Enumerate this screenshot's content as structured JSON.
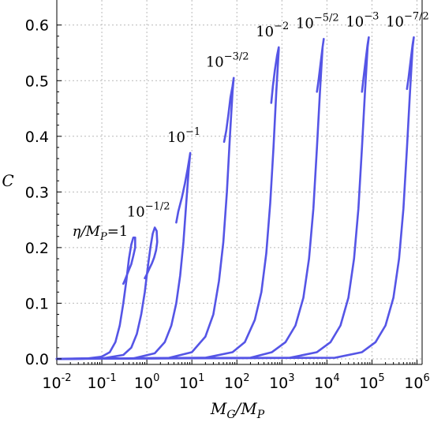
{
  "chart_data": {
    "type": "line",
    "title": "",
    "xlabel": "M_G/M_P",
    "ylabel": "C",
    "xscale": "log",
    "xlim": [
      0.01,
      1300000
    ],
    "ylim": [
      -0.01,
      0.645
    ],
    "grid": true,
    "line_color": "#5555e6",
    "x_ticks": [
      {
        "base": "10",
        "exp": "-2",
        "value": 0.01
      },
      {
        "base": "10",
        "exp": "-1",
        "value": 0.1
      },
      {
        "base": "10",
        "exp": "0",
        "value": 1
      },
      {
        "base": "10",
        "exp": "1",
        "value": 10
      },
      {
        "base": "10",
        "exp": "2",
        "value": 100
      },
      {
        "base": "10",
        "exp": "3",
        "value": 1000
      },
      {
        "base": "10",
        "exp": "4",
        "value": 10000
      },
      {
        "base": "10",
        "exp": "5",
        "value": 100000
      },
      {
        "base": "10",
        "exp": "6",
        "value": 1000000
      }
    ],
    "y_ticks": [
      "0.0",
      "0.1",
      "0.2",
      "0.3",
      "0.4",
      "0.5",
      "0.6"
    ],
    "y_tick_values": [
      0,
      0.1,
      0.2,
      0.3,
      0.4,
      0.5,
      0.6
    ],
    "series": [
      {
        "label_base": "η/M",
        "label_sub": "P",
        "label_tail": "=1",
        "label_exp": "",
        "x": [
          0.01,
          0.05,
          0.1,
          0.15,
          0.2,
          0.25,
          0.3,
          0.35,
          0.4,
          0.45,
          0.5,
          0.55,
          0.55,
          0.5,
          0.45,
          0.4,
          0.35,
          0.32,
          0.3
        ],
        "y": [
          0.0,
          0.001,
          0.004,
          0.012,
          0.03,
          0.06,
          0.1,
          0.14,
          0.18,
          0.205,
          0.218,
          0.218,
          0.2,
          0.185,
          0.17,
          0.16,
          0.148,
          0.14,
          0.135
        ]
      },
      {
        "label_base": "10",
        "label_sub": "",
        "label_tail": "",
        "label_exp": "−1/2",
        "x": [
          0.01,
          0.1,
          0.3,
          0.45,
          0.6,
          0.75,
          0.9,
          1.05,
          1.2,
          1.35,
          1.5,
          1.65,
          1.7,
          1.6,
          1.45,
          1.3,
          1.15,
          1.0,
          0.9
        ],
        "y": [
          0.0,
          0.0005,
          0.007,
          0.02,
          0.045,
          0.08,
          0.12,
          0.165,
          0.2,
          0.225,
          0.236,
          0.23,
          0.21,
          0.195,
          0.182,
          0.172,
          0.163,
          0.152,
          0.145
        ]
      },
      {
        "label_base": "10",
        "label_sub": "",
        "label_tail": "",
        "label_exp": "−1",
        "x": [
          0.01,
          0.5,
          1.5,
          2.5,
          3.5,
          4.5,
          5.5,
          6.5,
          7.5,
          8.5,
          9.2,
          9.0,
          8.0,
          7.0,
          6.0,
          5.0,
          4.5
        ],
        "y": [
          0.0,
          0.0008,
          0.01,
          0.03,
          0.06,
          0.1,
          0.15,
          0.21,
          0.28,
          0.34,
          0.37,
          0.365,
          0.34,
          0.315,
          0.29,
          0.265,
          0.245
        ]
      },
      {
        "label_base": "10",
        "label_sub": "",
        "label_tail": "",
        "label_exp": "−3/2",
        "x": [
          0.01,
          3,
          10,
          20,
          30,
          40,
          50,
          60,
          70,
          80,
          85,
          80,
          72,
          65,
          58,
          52
        ],
        "y": [
          0.0,
          0.0015,
          0.012,
          0.04,
          0.08,
          0.14,
          0.21,
          0.3,
          0.4,
          0.48,
          0.505,
          0.49,
          0.47,
          0.44,
          0.41,
          0.39
        ]
      },
      {
        "label_base": "10",
        "label_sub": "",
        "label_tail": "",
        "label_exp": "−2",
        "x": [
          0.01,
          20,
          80,
          150,
          250,
          350,
          450,
          550,
          650,
          750,
          850,
          850,
          780,
          700,
          630,
          580
        ],
        "y": [
          0.0,
          0.002,
          0.012,
          0.03,
          0.07,
          0.12,
          0.19,
          0.28,
          0.38,
          0.48,
          0.555,
          0.56,
          0.545,
          0.52,
          0.49,
          0.46
        ]
      },
      {
        "label_base": "10",
        "label_sub": "",
        "label_tail": "",
        "label_exp": "−5/2",
        "x": [
          0.01,
          200,
          600,
          1200,
          2000,
          3000,
          4000,
          5000,
          6000,
          7000,
          8000,
          8500,
          8000,
          7200,
          6500,
          6000
        ],
        "y": [
          0.0,
          0.002,
          0.012,
          0.03,
          0.06,
          0.11,
          0.18,
          0.27,
          0.38,
          0.48,
          0.56,
          0.575,
          0.56,
          0.53,
          0.5,
          0.48
        ]
      },
      {
        "label_base": "10",
        "label_sub": "",
        "label_tail": "",
        "label_exp": "−3",
        "x": [
          0.01,
          1500,
          6000,
          12000,
          20000,
          30000,
          40000,
          50000,
          60000,
          70000,
          80000,
          85000,
          80000,
          72000,
          65000,
          60000
        ],
        "y": [
          0.0,
          0.002,
          0.012,
          0.03,
          0.06,
          0.11,
          0.18,
          0.27,
          0.38,
          0.48,
          0.56,
          0.578,
          0.565,
          0.535,
          0.505,
          0.48
        ]
      },
      {
        "label_base": "10",
        "label_sub": "",
        "label_tail": "",
        "label_exp": "−7/2",
        "x": [
          0.01,
          15000,
          60000,
          120000,
          200000,
          300000,
          400000,
          500000,
          600000,
          700000,
          800000,
          850000,
          800000,
          720000,
          650000,
          600000
        ],
        "y": [
          0.0,
          0.002,
          0.012,
          0.03,
          0.06,
          0.11,
          0.18,
          0.27,
          0.38,
          0.48,
          0.56,
          0.578,
          0.565,
          0.535,
          0.505,
          0.485
        ]
      }
    ]
  }
}
